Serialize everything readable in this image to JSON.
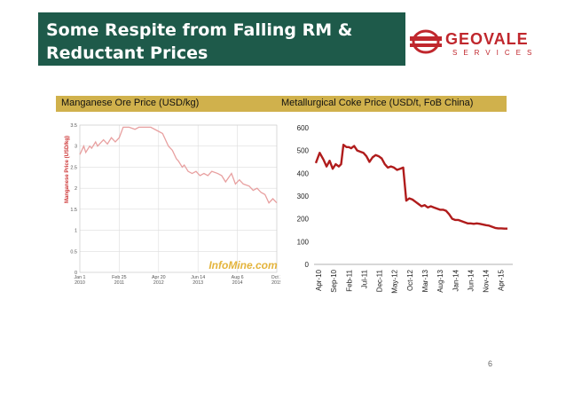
{
  "slide": {
    "title_line1": "Some Respite from Falling RM &",
    "title_line2": "Reductant Prices",
    "page_number": "6"
  },
  "logo": {
    "name": "GEOVALE",
    "tagline": "SERVICES",
    "icon": "geovale-globe-icon",
    "color": "#c0272d"
  },
  "headers": {
    "left": "Manganese Ore Price (USD/kg)",
    "right": "Metallurgical Coke Price (USD/t, FoB China)"
  },
  "colors": {
    "title_bg": "#1e5a4a",
    "header_bg": "#d0b14c",
    "coke_line": "#b01c1c",
    "mn_line": "#e8a0a0"
  },
  "chart_data": [
    {
      "type": "line",
      "ylabel": "Manganese Price (USD/kg)",
      "yticks": [
        "0",
        "0.5",
        "1",
        "1.5",
        "2",
        "2.5",
        "3",
        "3.5"
      ],
      "ylim": [
        0,
        3.5
      ],
      "xticks": [
        [
          "Jan 1",
          "2010"
        ],
        [
          "Feb 25",
          "2011"
        ],
        [
          "Apr 20",
          "2012"
        ],
        [
          "Jun 14",
          "2013"
        ],
        [
          "Aug 6",
          "2014"
        ],
        [
          "Oct 2",
          "2015"
        ]
      ],
      "watermark": "InfoMine.com",
      "grid": true,
      "series": [
        {
          "x": [
            0,
            0.02,
            0.03,
            0.05,
            0.06,
            0.08,
            0.09,
            0.12,
            0.14,
            0.16,
            0.18,
            0.2,
            0.22,
            0.25,
            0.28,
            0.3,
            0.33,
            0.36,
            0.38,
            0.4,
            0.42,
            0.45,
            0.47,
            0.49,
            0.5,
            0.52,
            0.53,
            0.55,
            0.57,
            0.59,
            0.61,
            0.63,
            0.65,
            0.67,
            0.7,
            0.72,
            0.74,
            0.77,
            0.79,
            0.81,
            0.83,
            0.86,
            0.88,
            0.9,
            0.92,
            0.94,
            0.96,
            0.98,
            1.0
          ],
          "values": [
            2.8,
            3.0,
            2.85,
            3.0,
            2.95,
            3.1,
            3.0,
            3.15,
            3.05,
            3.2,
            3.1,
            3.2,
            3.45,
            3.45,
            3.4,
            3.45,
            3.45,
            3.45,
            3.4,
            3.35,
            3.3,
            3.0,
            2.9,
            2.7,
            2.65,
            2.5,
            2.55,
            2.4,
            2.35,
            2.4,
            2.3,
            2.35,
            2.3,
            2.4,
            2.35,
            2.3,
            2.15,
            2.35,
            2.1,
            2.2,
            2.1,
            2.05,
            1.95,
            2.0,
            1.9,
            1.85,
            1.65,
            1.75,
            1.65
          ]
        }
      ]
    },
    {
      "type": "line",
      "xlabel": "",
      "ylabel": "",
      "ylim": [
        0,
        600
      ],
      "yticks": [
        0,
        100,
        200,
        300,
        400,
        500,
        600
      ],
      "categories": [
        "Apr-10",
        "Sep-10",
        "Feb-11",
        "Jul-11",
        "Dec-11",
        "May-12",
        "Oct-12",
        "Mar-13",
        "Aug-13",
        "Jan-14",
        "Jun-14",
        "Nov-14",
        "Apr-15"
      ],
      "grid": false,
      "series": [
        {
          "x": [
            0,
            0.5,
            1,
            1.4,
            1.8,
            2.2,
            2.6,
            3.0,
            3.3,
            3.6,
            4.0,
            4.3,
            4.6,
            5.0,
            5.4,
            5.8,
            6.2,
            6.6,
            7.0,
            7.4,
            7.8,
            8.2,
            8.6,
            9.0,
            9.4,
            9.8,
            10.2,
            10.6,
            11.0,
            11.4,
            11.8,
            12.2,
            12.6,
            13.0,
            13.4,
            13.8,
            14.2,
            14.6,
            15.0,
            15.4,
            15.8,
            16.2,
            16.6,
            17.0,
            17.4,
            17.8,
            18.2,
            18.6,
            19.0,
            19.4,
            19.8,
            20.2,
            20.6,
            21.0,
            21.4,
            21.8,
            22.2,
            22.6,
            23.0,
            23.4,
            23.8,
            24.2,
            24.6,
            25.0
          ],
          "values": [
            445,
            490,
            460,
            430,
            455,
            420,
            440,
            430,
            440,
            525,
            515,
            515,
            510,
            520,
            500,
            495,
            490,
            475,
            450,
            470,
            480,
            475,
            465,
            440,
            425,
            430,
            425,
            415,
            420,
            425,
            280,
            290,
            285,
            275,
            265,
            255,
            260,
            250,
            255,
            250,
            245,
            240,
            240,
            235,
            220,
            200,
            195,
            195,
            190,
            185,
            180,
            180,
            178,
            180,
            178,
            175,
            172,
            170,
            165,
            160,
            158,
            158,
            157,
            157
          ]
        }
      ]
    }
  ]
}
